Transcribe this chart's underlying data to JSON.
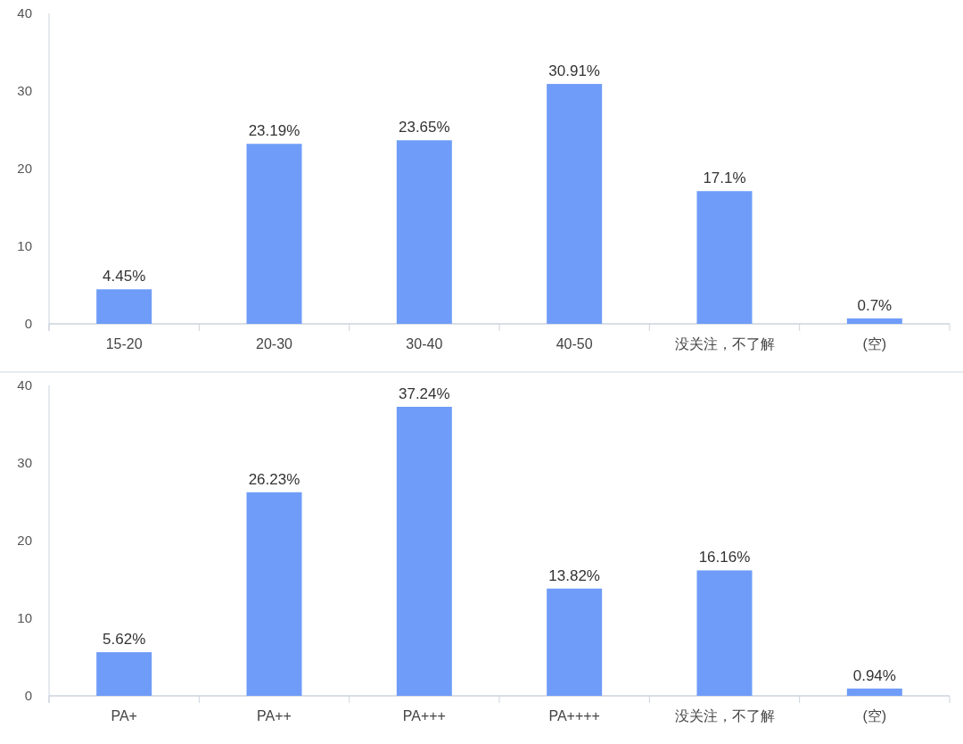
{
  "chart_data": [
    {
      "type": "bar",
      "categories": [
        "15-20",
        "20-30",
        "30-40",
        "40-50",
        "没关注，不了解",
        "(空)"
      ],
      "values": [
        4.45,
        23.19,
        23.65,
        30.91,
        17.1,
        0.7
      ],
      "value_labels": [
        "4.45%",
        "23.19%",
        "23.65%",
        "30.91%",
        "17.1%",
        "0.7%"
      ],
      "color": "#6f9cf8",
      "ylim": [
        0,
        40
      ],
      "yticks": [
        0,
        10,
        20,
        30,
        40
      ]
    },
    {
      "type": "bar",
      "categories": [
        "PA+",
        "PA++",
        "PA+++",
        "PA++++",
        "没关注，不了解",
        "(空)"
      ],
      "values": [
        5.62,
        26.23,
        37.24,
        13.82,
        16.16,
        0.94
      ],
      "value_labels": [
        "5.62%",
        "26.23%",
        "37.24%",
        "13.82%",
        "16.16%",
        "0.94%"
      ],
      "color": "#6f9cf8",
      "ylim": [
        0,
        40
      ],
      "yticks": [
        0,
        10,
        20,
        30,
        40
      ]
    }
  ]
}
